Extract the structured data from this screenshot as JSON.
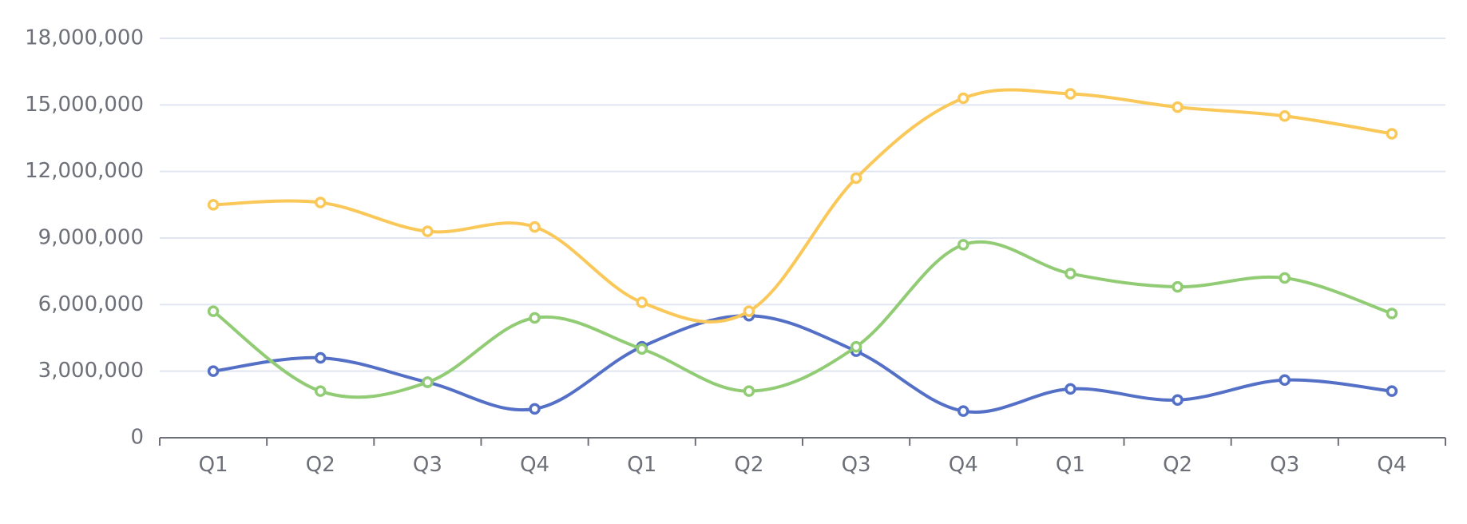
{
  "chart_data": {
    "type": "line",
    "categories": [
      "Q1",
      "Q2",
      "Q3",
      "Q4",
      "Q1",
      "Q2",
      "Q3",
      "Q4",
      "Q1",
      "Q2",
      "Q3",
      "Q4"
    ],
    "ylim": [
      0,
      18000000
    ],
    "yticks": [
      0,
      3000000,
      6000000,
      9000000,
      12000000,
      15000000,
      18000000
    ],
    "ytick_labels": [
      "0",
      "3,000,000",
      "6,000,000",
      "9,000,000",
      "12,000,000",
      "15,000,000",
      "18,000,000"
    ],
    "grid": true,
    "smooth": true,
    "series": [
      {
        "color": "#5470c6",
        "values": [
          3000000,
          3600000,
          2500000,
          1300000,
          4100000,
          5500000,
          3900000,
          1200000,
          2200000,
          1700000,
          2600000,
          2100000
        ]
      },
      {
        "color": "#91cc75",
        "values": [
          5700000,
          2100000,
          2500000,
          5400000,
          4000000,
          2100000,
          4100000,
          8700000,
          7400000,
          6800000,
          7200000,
          5600000
        ]
      },
      {
        "color": "#fac858",
        "values": [
          10500000,
          10600000,
          9300000,
          9500000,
          6100000,
          5700000,
          11700000,
          15300000,
          15500000,
          14900000,
          14500000,
          13700000
        ]
      }
    ]
  }
}
